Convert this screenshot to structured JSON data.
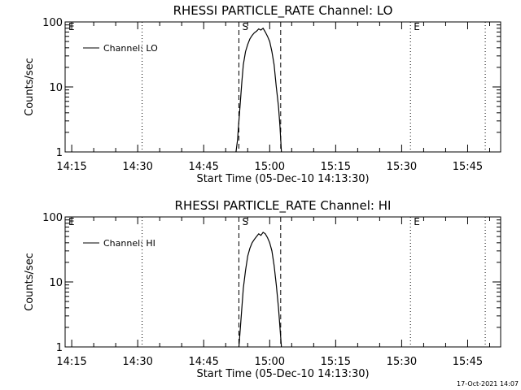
{
  "chart_data": [
    {
      "type": "line",
      "title": "RHESSI PARTICLE_RATE Channel: LO",
      "xlabel": "Start Time (05-Dec-10 14:13:30)",
      "ylabel": "Counts/sec",
      "yscale": "log",
      "ylim": [
        1,
        100
      ],
      "xlim": [
        "14:13:30",
        "15:52:30"
      ],
      "x_ticks": [
        "14:15",
        "14:30",
        "14:45",
        "15:00",
        "15:15",
        "15:30",
        "15:45"
      ],
      "y_ticks": [
        "1",
        "10",
        "100"
      ],
      "legend": {
        "position": "top-left",
        "label": "Channel: LO"
      },
      "markers": [
        {
          "label": "E",
          "time": "14:13:30",
          "style": "dotted"
        },
        {
          "label": "",
          "time": "14:31:00",
          "style": "dotted"
        },
        {
          "label": "S",
          "time": "14:53:00",
          "style": "dashed"
        },
        {
          "label": "",
          "time": "15:02:30",
          "style": "dashed"
        },
        {
          "label": "E",
          "time": "15:32:00",
          "style": "dotted"
        },
        {
          "label": "",
          "time": "15:49:00",
          "style": "dotted"
        }
      ],
      "series": [
        {
          "name": "Channel: LO",
          "x": [
            "14:52:20",
            "14:52:40",
            "14:53:00",
            "14:53:20",
            "14:53:40",
            "14:54:00",
            "14:54:30",
            "14:55:00",
            "14:55:30",
            "14:56:00",
            "14:56:30",
            "14:57:00",
            "14:57:30",
            "14:58:00",
            "14:58:30",
            "14:59:00",
            "14:59:30",
            "15:00:00",
            "15:00:30",
            "15:01:00",
            "15:01:30",
            "15:02:00",
            "15:02:20",
            "15:02:40"
          ],
          "values": [
            1,
            1.5,
            3,
            6,
            12,
            22,
            35,
            45,
            55,
            62,
            68,
            72,
            78,
            75,
            80,
            70,
            60,
            50,
            35,
            22,
            10,
            5,
            2.5,
            1
          ]
        }
      ]
    },
    {
      "type": "line",
      "title": "RHESSI PARTICLE_RATE Channel: HI",
      "xlabel": "Start Time (05-Dec-10 14:13:30)",
      "ylabel": "Counts/sec",
      "yscale": "log",
      "ylim": [
        1,
        100
      ],
      "xlim": [
        "14:13:30",
        "15:52:30"
      ],
      "x_ticks": [
        "14:15",
        "14:30",
        "14:45",
        "15:00",
        "15:15",
        "15:30",
        "15:45"
      ],
      "y_ticks": [
        "1",
        "10",
        "100"
      ],
      "legend": {
        "position": "top-left",
        "label": "Channel: HI"
      },
      "markers": [
        {
          "label": "E",
          "time": "14:13:30",
          "style": "dotted"
        },
        {
          "label": "",
          "time": "14:31:00",
          "style": "dotted"
        },
        {
          "label": "S",
          "time": "14:53:00",
          "style": "dashed"
        },
        {
          "label": "",
          "time": "15:02:30",
          "style": "dashed"
        },
        {
          "label": "E",
          "time": "15:32:00",
          "style": "dotted"
        },
        {
          "label": "",
          "time": "15:49:00",
          "style": "dotted"
        }
      ],
      "series": [
        {
          "name": "Channel: HI",
          "x": [
            "14:53:00",
            "14:53:20",
            "14:53:40",
            "14:54:00",
            "14:54:30",
            "14:55:00",
            "14:55:30",
            "14:56:00",
            "14:56:30",
            "14:57:00",
            "14:57:30",
            "14:58:00",
            "14:58:30",
            "14:59:00",
            "14:59:30",
            "15:00:00",
            "15:00:30",
            "15:01:00",
            "15:01:30",
            "15:02:00",
            "15:02:20",
            "15:02:40"
          ],
          "values": [
            1,
            2,
            4,
            8,
            15,
            25,
            33,
            40,
            45,
            50,
            55,
            52,
            58,
            55,
            48,
            40,
            30,
            18,
            9,
            4,
            2,
            1
          ]
        }
      ]
    }
  ],
  "footer": {
    "timestamp": "17-Oct-2021 14:07"
  }
}
